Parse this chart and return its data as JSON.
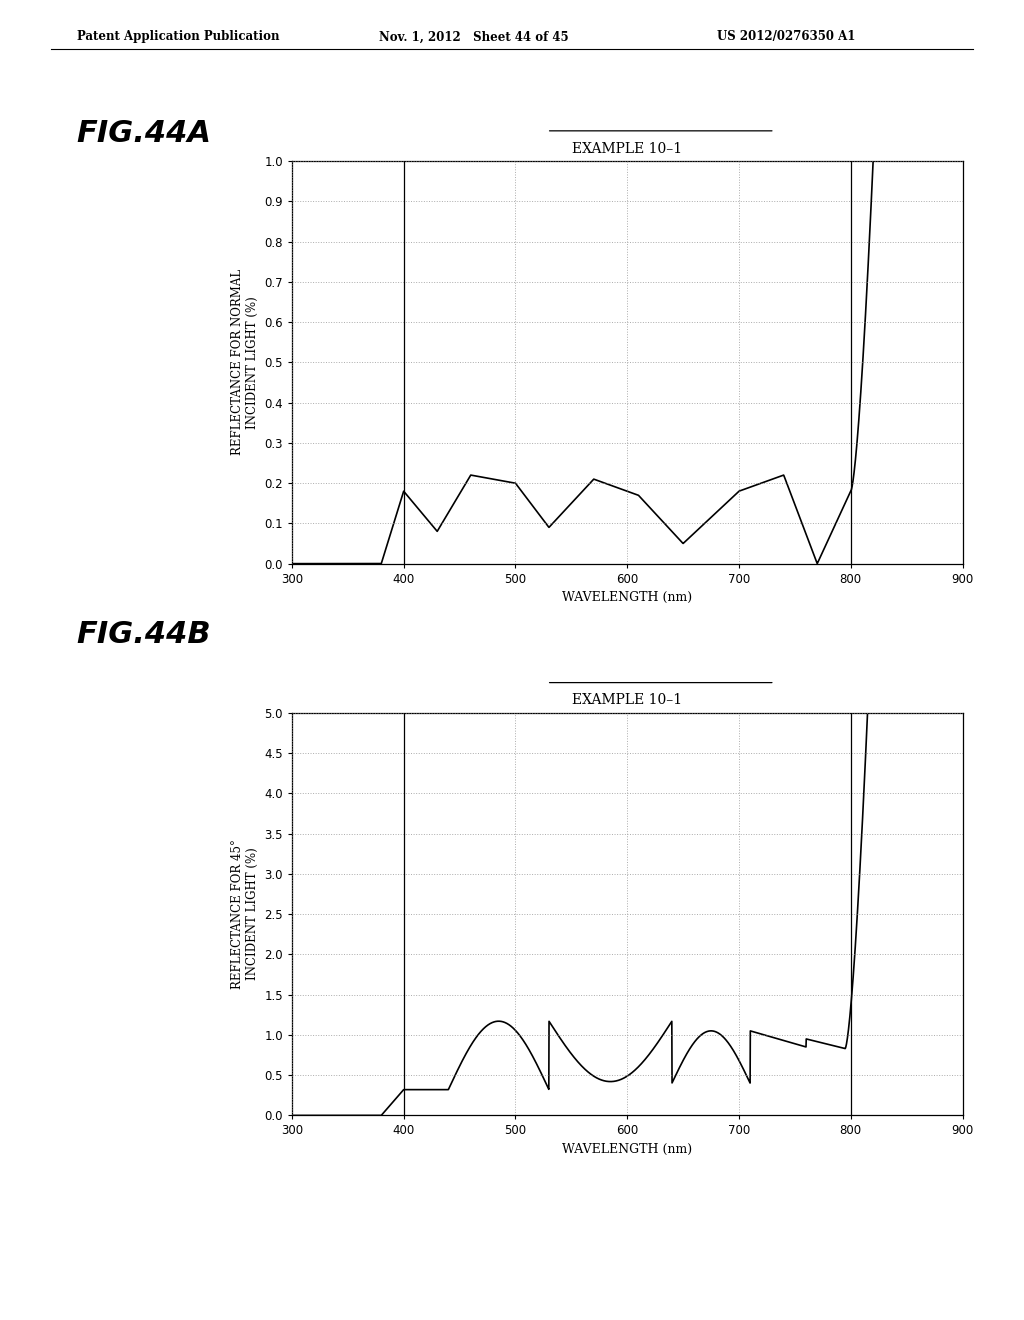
{
  "header_left": "Patent Application Publication",
  "header_mid": "Nov. 1, 2012   Sheet 44 of 45",
  "header_right": "US 2012/0276350 A1",
  "fig_label_A": "FIG.44A",
  "fig_label_B": "FIG.44B",
  "title_A": "EXAMPLE 10–1",
  "title_B": "EXAMPLE 10–1",
  "xlabel": "WAVELENGTH (nm)",
  "ylabel_A": "REFLECTANCE FOR NORMAL\nINCIDENT LIGHT (%)",
  "ylabel_B": "REFLECTANCE FOR 45°\nINCIDENT LIGHT (%)",
  "xlim": [
    300,
    900
  ],
  "ylim_A": [
    0.0,
    1.0
  ],
  "ylim_B": [
    0.0,
    5.0
  ],
  "xticks": [
    300,
    400,
    500,
    600,
    700,
    800,
    900
  ],
  "yticks_A": [
    0.0,
    0.1,
    0.2,
    0.3,
    0.4,
    0.5,
    0.6,
    0.7,
    0.8,
    0.9,
    1.0
  ],
  "yticks_B": [
    0.0,
    0.5,
    1.0,
    1.5,
    2.0,
    2.5,
    3.0,
    3.5,
    4.0,
    4.5,
    5.0
  ],
  "yticklabels_A": [
    "0.0",
    "0.1",
    "0.2",
    "0.3",
    "0.4",
    "0.5",
    "0.6",
    "0.7",
    "0.8",
    "0.9",
    "1.0"
  ],
  "yticklabels_B": [
    "0.0",
    "0.5",
    "1.0",
    "1.5",
    "2.0",
    "2.5",
    "3.0",
    "3.5",
    "4.0",
    "4.5",
    "5.0"
  ],
  "background_color": "#ffffff",
  "line_color": "#000000",
  "grid_color": "#888888"
}
